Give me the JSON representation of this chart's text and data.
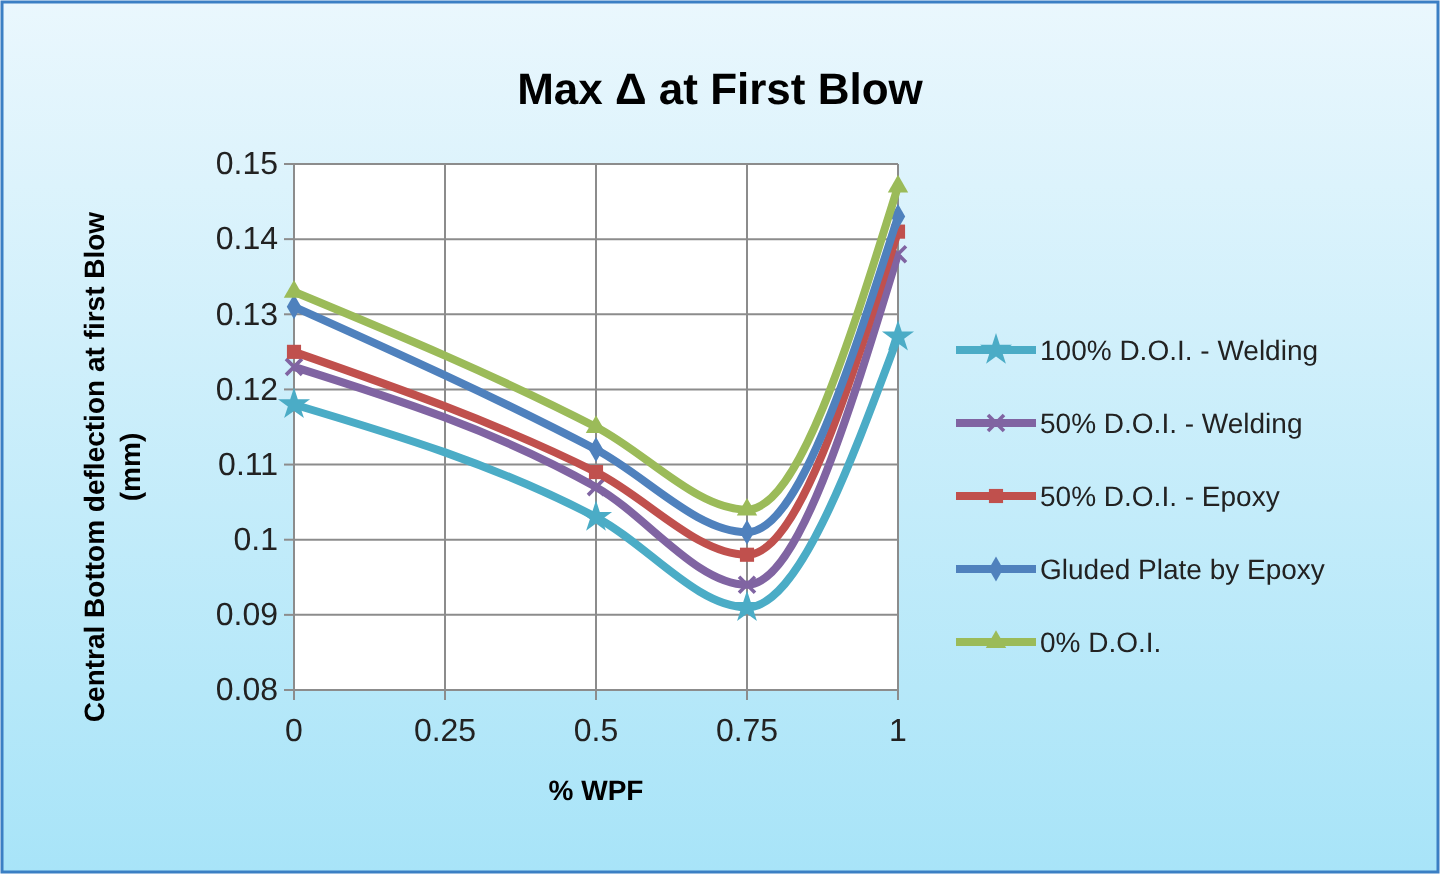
{
  "chart_data": {
    "type": "line",
    "title": "Max Δ at First Blow",
    "xlabel": "% WPF",
    "ylabel": "Central Bottom deflection at first  Blow (mm)",
    "x": [
      0,
      0.5,
      0.75,
      1
    ],
    "xlim": [
      0,
      1
    ],
    "xticks": [
      0,
      0.25,
      0.5,
      0.75,
      1
    ],
    "ylim": [
      0.08,
      0.15
    ],
    "yticks": [
      0.08,
      0.09,
      {
        "value": 0.1,
        "label": "0.1"
      },
      0.11,
      0.12,
      0.13,
      0.14,
      0.15
    ],
    "grid": true,
    "legend": "right",
    "line_style": "solid",
    "series": [
      {
        "name": "100% D.O.I. -  Welding",
        "color": "#4bacc6",
        "marker": "star",
        "values": [
          0.118,
          0.103,
          0.091,
          0.127
        ]
      },
      {
        "name": "50% D.O.I. - Welding",
        "color": "#8064a2",
        "marker": "cross",
        "values": [
          0.123,
          0.107,
          0.094,
          0.138
        ]
      },
      {
        "name": "50% D.O.I. -  Epoxy",
        "color": "#c0504d",
        "marker": "square",
        "values": [
          0.125,
          0.109,
          0.098,
          0.141
        ]
      },
      {
        "name": "Gluded Plate by Epoxy",
        "color": "#4f81bd",
        "marker": "diamond",
        "values": [
          0.131,
          0.112,
          0.101,
          0.143
        ]
      },
      {
        "name": "0% D.O.I.",
        "color": "#9bbb59",
        "marker": "triangle",
        "values": [
          0.133,
          0.115,
          0.104,
          0.147
        ]
      }
    ]
  }
}
